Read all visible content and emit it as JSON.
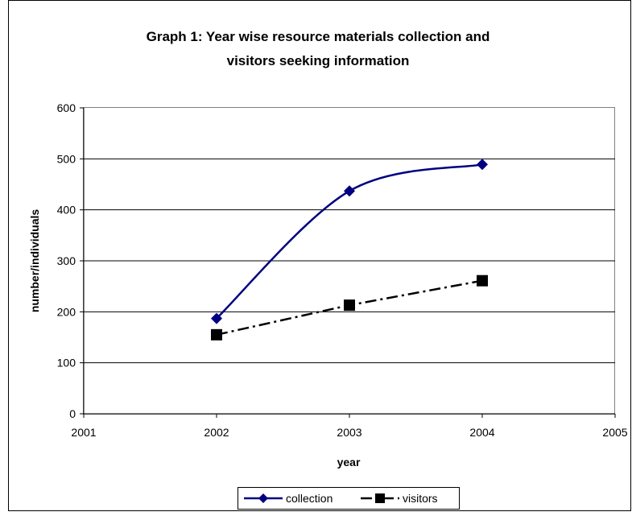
{
  "chart_data": {
    "type": "line",
    "title_lines": [
      "Graph 1: Year wise resource materials collection and",
      "visitors seeking information"
    ],
    "xlabel": "year",
    "ylabel": "number/individuals",
    "xlim": [
      2001,
      2005
    ],
    "ylim": [
      0,
      600
    ],
    "x_ticks": [
      "2001",
      "2002",
      "2003",
      "2004",
      "2005"
    ],
    "y_ticks": [
      "0",
      "100",
      "200",
      "300",
      "400",
      "500",
      "600"
    ],
    "grid": "horizontal",
    "legend_position": "bottom",
    "series": [
      {
        "name": "collection",
        "x": [
          2002,
          2003,
          2004
        ],
        "values": [
          187,
          437,
          489
        ],
        "color": "#000080",
        "marker": "diamond",
        "line_style": "solid",
        "smoothed": true
      },
      {
        "name": "visitors",
        "x": [
          2002,
          2003,
          2004
        ],
        "values": [
          155,
          213,
          261
        ],
        "color": "#000000",
        "marker": "square",
        "line_style": "dash-dot",
        "smoothed": false
      }
    ]
  }
}
